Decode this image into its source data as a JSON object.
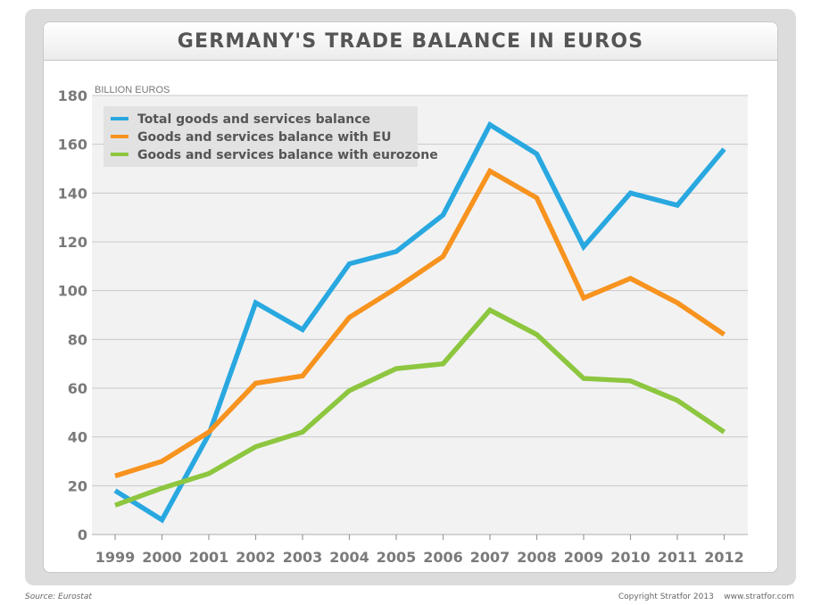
{
  "footer": {
    "source": "Source: Eurostat",
    "copyright": "Copyright Stratfor 2013    www.stratfor.com"
  },
  "chart_data": {
    "type": "line",
    "title": "GERMANY'S TRADE BALANCE IN EUROS",
    "ylabel": "BILLION EUROS",
    "xlabel": "",
    "ylim": [
      0,
      180
    ],
    "yticks": [
      0,
      20,
      40,
      60,
      80,
      100,
      120,
      140,
      160,
      180
    ],
    "grid": true,
    "legend_position": "top-left",
    "x": [
      "1999",
      "2000",
      "2001",
      "2002",
      "2003",
      "2004",
      "2005",
      "2006",
      "2007",
      "2008",
      "2009",
      "2010",
      "2011",
      "2012"
    ],
    "series": [
      {
        "name": "Total goods and services balance",
        "color": "#29a8e0",
        "values": [
          18,
          6,
          41,
          95,
          84,
          111,
          116,
          131,
          168,
          156,
          118,
          140,
          135,
          158
        ]
      },
      {
        "name": "Goods and services balance with EU",
        "color": "#f7931e",
        "values": [
          24,
          30,
          42,
          62,
          65,
          89,
          101,
          114,
          149,
          138,
          97,
          105,
          95,
          82
        ]
      },
      {
        "name": "Goods and services balance with eurozone",
        "color": "#8dc63f",
        "values": [
          12,
          19,
          25,
          36,
          42,
          59,
          68,
          70,
          92,
          82,
          64,
          63,
          55,
          42
        ]
      }
    ]
  }
}
